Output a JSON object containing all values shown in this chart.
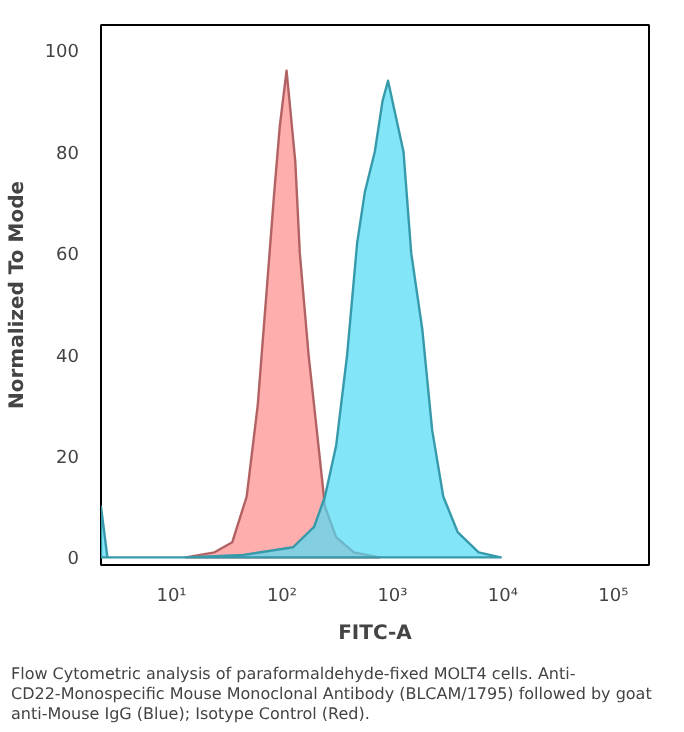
{
  "chart_data": {
    "type": "area",
    "xlabel": "FITC-A",
    "ylabel": "Normalized To Mode",
    "log": "x",
    "xlim": [
      2.3,
      210000
    ],
    "ylim": [
      -1.5,
      105
    ],
    "xticks": [
      {
        "value": 10,
        "label": "10¹"
      },
      {
        "value": 100,
        "label": "10²"
      },
      {
        "value": 1000,
        "label": "10³"
      },
      {
        "value": 10000,
        "label": "10⁴"
      },
      {
        "value": 100000,
        "label": "10⁵"
      }
    ],
    "yticks": [
      0,
      20,
      40,
      60,
      80,
      100
    ],
    "grid": false,
    "series": [
      {
        "color": "#ff8c8c",
        "x": [
          13.5,
          24.5,
          35.5,
          47.9,
          60.3,
          74.1,
          85.1,
          95.5,
          110,
          117,
          132,
          145,
          174,
          214,
          245,
          309,
          447,
          759
        ],
        "values": [
          0,
          1,
          3,
          12,
          30,
          55,
          72,
          85,
          96,
          90,
          78,
          60,
          40,
          22,
          10,
          4,
          1,
          0
        ]
      },
      {
        "color": "#4fdcf5",
        "x": [
          2.3,
          2.63,
          13.5,
          44.7,
          126,
          195,
          245,
          309,
          389,
          479,
          562,
          692,
          813,
          912,
          1047,
          1259,
          1479,
          1862,
          2291,
          2884,
          3890,
          6026,
          9550
        ],
        "values": [
          10,
          0,
          0,
          0.5,
          2,
          6,
          12,
          22,
          40,
          62,
          72,
          80,
          90,
          94,
          88,
          80,
          60,
          45,
          25,
          12,
          5,
          1,
          0
        ]
      }
    ],
    "annotations": [
      "Flow Cytometric analysis of paraformaldehyde-fixed MOLT4 cells. Anti-CD22-Monospecific Mouse Monoclonal Antibody (BLCAM/1795) followed by goat anti-Mouse IgG (Blue); Isotype Control (Red)."
    ]
  }
}
